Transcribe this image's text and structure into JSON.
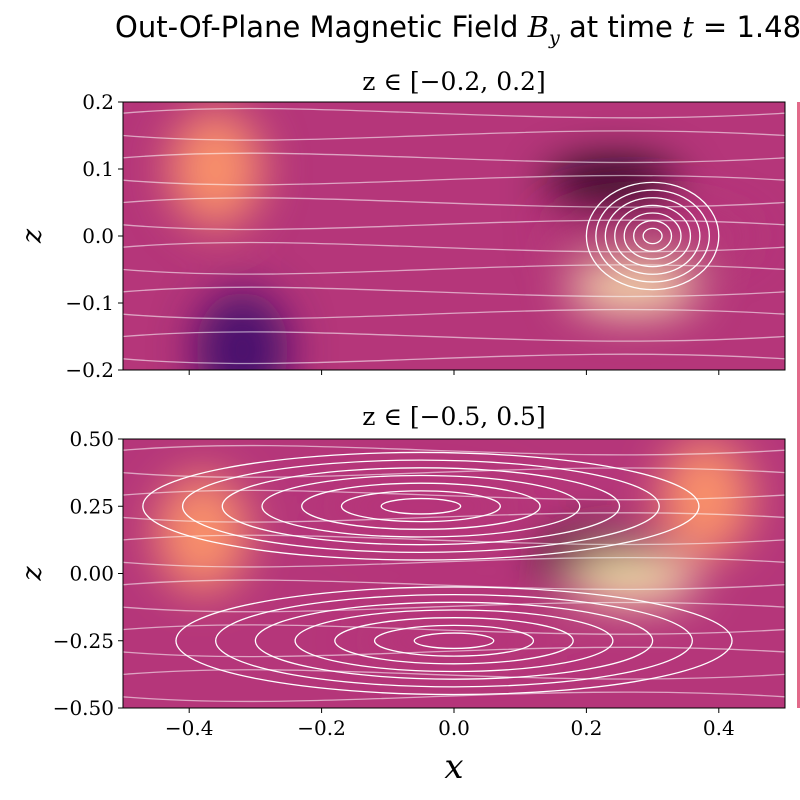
{
  "figure": {
    "title_prefix": "Out-Of-Plane Magnetic Field ",
    "title_var": "B",
    "title_var_sub": "y",
    "title_mid": " at time ",
    "title_time_var": "t",
    "title_eq": " = ",
    "title_time_value": "1.48"
  },
  "chart_data": [
    {
      "type": "heatmap",
      "title": "z ∈ [−0.2, 0.2]",
      "xlabel": "",
      "ylabel": "z",
      "xlim": [
        -0.5,
        0.5
      ],
      "ylim": [
        -0.2,
        0.2
      ],
      "xticks": [
        -0.4,
        -0.2,
        0.0,
        0.2,
        0.4
      ],
      "xtick_labels": [
        "",
        "",
        "",
        "",
        ""
      ],
      "yticks": [
        -0.2,
        -0.1,
        0.0,
        0.1,
        0.2
      ],
      "ytick_labels": [
        "−0.2",
        "−0.1",
        "0.0",
        "0.1",
        "0.2"
      ],
      "colormap": "magma",
      "overlay": "white streamlines",
      "features": [
        {
          "x": 0.24,
          "z": 0.075,
          "level": "min",
          "label": "dark minimum"
        },
        {
          "x": 0.27,
          "z": -0.08,
          "level": "max",
          "label": "bright maximum"
        },
        {
          "x": -0.36,
          "z": 0.1,
          "level": "high",
          "label": "bright band upper left"
        },
        {
          "x": -0.32,
          "z": -0.17,
          "level": "low",
          "label": "dark band lower left"
        },
        {
          "x": 0.3,
          "z": 0.0,
          "level": "o-point",
          "label": "magnetic island"
        }
      ],
      "grid": false
    },
    {
      "type": "heatmap",
      "title": "z ∈ [−0.5, 0.5]",
      "xlabel": "x",
      "ylabel": "z",
      "xlim": [
        -0.5,
        0.5
      ],
      "ylim": [
        -0.5,
        0.5
      ],
      "xticks": [
        -0.4,
        -0.2,
        0.0,
        0.2,
        0.4
      ],
      "xtick_labels": [
        "−0.4",
        "−0.2",
        "0.0",
        "0.2",
        "0.4"
      ],
      "yticks": [
        -0.5,
        -0.25,
        0.0,
        0.25,
        0.5
      ],
      "ytick_labels": [
        "−0.50",
        "−0.25",
        "0.00",
        "0.25",
        "0.50"
      ],
      "colormap": "magma",
      "overlay": "white streamlines",
      "features": [
        {
          "x": 0.22,
          "z": 0.06,
          "level": "min",
          "label": "dark minimum"
        },
        {
          "x": 0.27,
          "z": -0.02,
          "level": "max",
          "label": "bright maximum"
        },
        {
          "x": -0.05,
          "z": 0.25,
          "level": "o-point",
          "label": "upper vortex"
        },
        {
          "x": 0.0,
          "z": -0.25,
          "level": "o-point",
          "label": "lower vortex"
        },
        {
          "x": -0.38,
          "z": 0.15,
          "level": "high",
          "label": "bright band left"
        },
        {
          "x": 0.38,
          "z": 0.28,
          "level": "high",
          "label": "bright band right"
        }
      ],
      "grid": false
    }
  ]
}
